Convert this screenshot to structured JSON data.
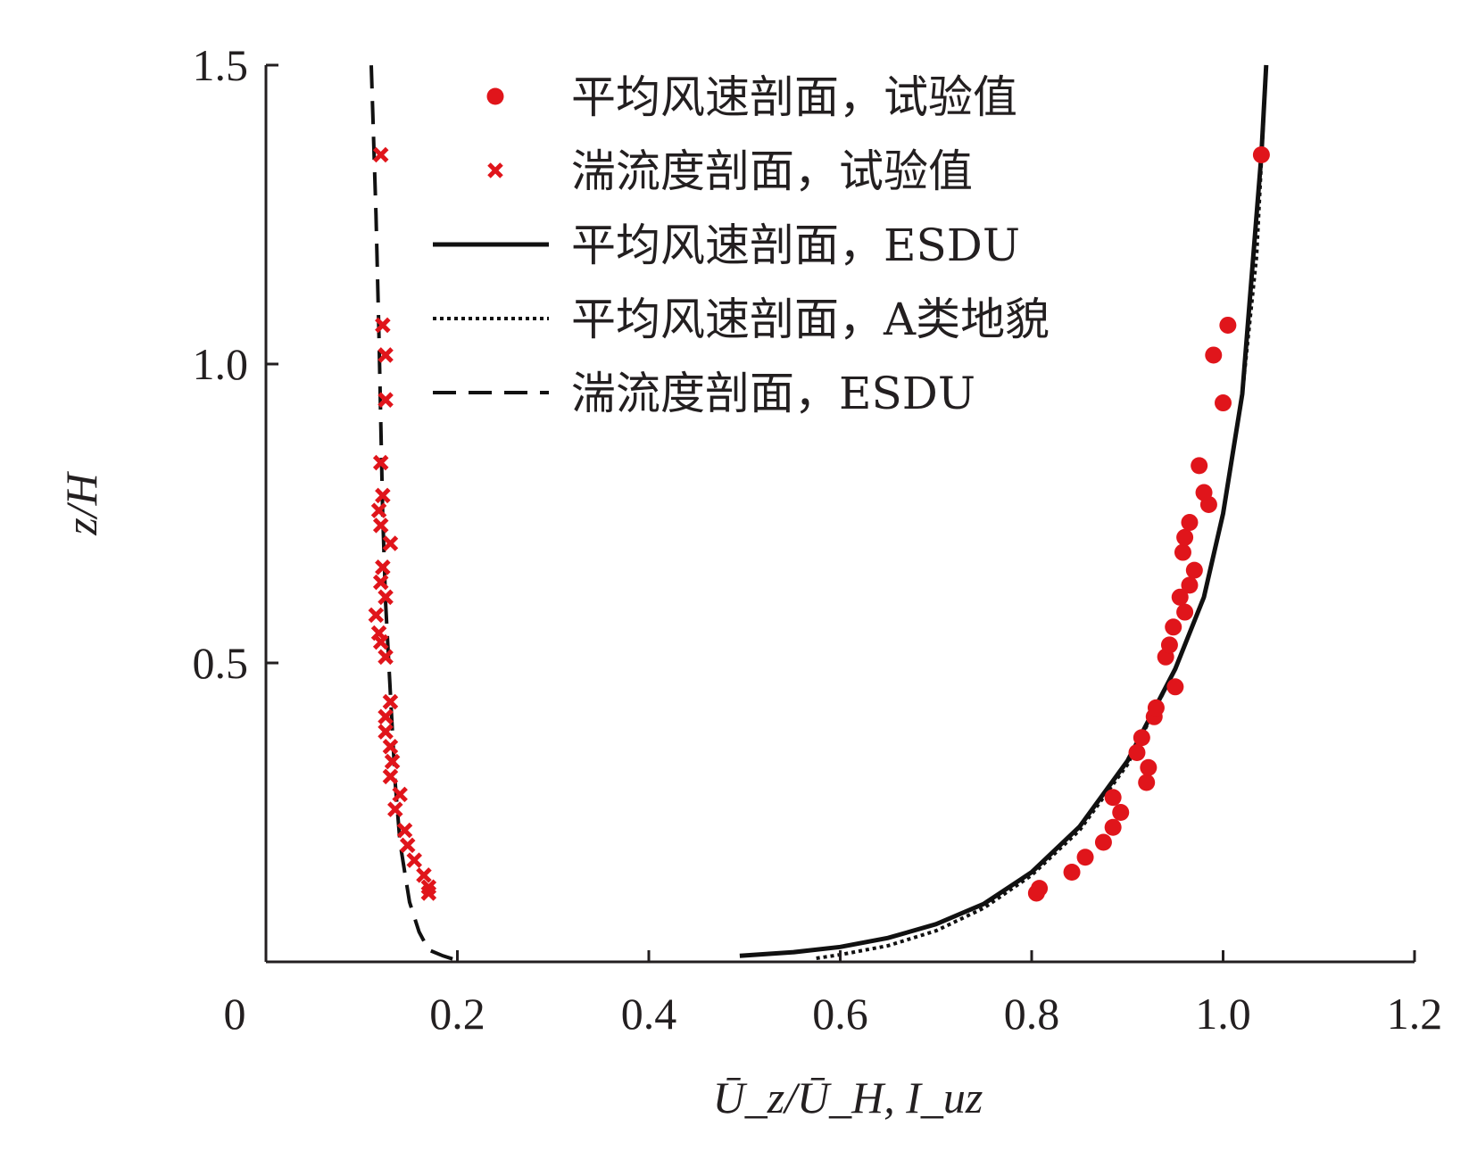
{
  "chart_data": {
    "type": "scatter",
    "xlabel": "Ū_z/Ū_H, I_uz",
    "ylabel": "z/H",
    "xlim": [
      0,
      1.2
    ],
    "ylim": [
      0,
      1.5
    ],
    "x_ticks": [
      "0",
      "0.2",
      "0.4",
      "0.6",
      "0.8",
      "1.0",
      "1.2"
    ],
    "y_ticks": [
      "0.5",
      "1.0",
      "1.5"
    ],
    "legend_position": "top-center",
    "colors": {
      "experiment": "#e0151b",
      "line": "#111111"
    },
    "series": [
      {
        "name": "平均风速剖面，试验值",
        "kind": "points",
        "marker": "circle",
        "points": [
          [
            0.805,
            0.115
          ],
          [
            0.808,
            0.123
          ],
          [
            0.842,
            0.15
          ],
          [
            0.856,
            0.175
          ],
          [
            0.875,
            0.2
          ],
          [
            0.885,
            0.225
          ],
          [
            0.893,
            0.25
          ],
          [
            0.885,
            0.275
          ],
          [
            0.92,
            0.3
          ],
          [
            0.922,
            0.325
          ],
          [
            0.91,
            0.35
          ],
          [
            0.915,
            0.375
          ],
          [
            0.928,
            0.41
          ],
          [
            0.93,
            0.425
          ],
          [
            0.95,
            0.46
          ],
          [
            0.94,
            0.51
          ],
          [
            0.944,
            0.53
          ],
          [
            0.948,
            0.56
          ],
          [
            0.96,
            0.585
          ],
          [
            0.955,
            0.61
          ],
          [
            0.965,
            0.63
          ],
          [
            0.97,
            0.655
          ],
          [
            0.958,
            0.685
          ],
          [
            0.96,
            0.71
          ],
          [
            0.965,
            0.735
          ],
          [
            0.985,
            0.765
          ],
          [
            0.98,
            0.785
          ],
          [
            0.975,
            0.83
          ],
          [
            1.0,
            0.935
          ],
          [
            0.99,
            1.015
          ],
          [
            1.005,
            1.065
          ],
          [
            1.04,
            1.35
          ]
        ]
      },
      {
        "name": "湍流度剖面，试验值",
        "kind": "points",
        "marker": "x",
        "points": [
          [
            0.17,
            0.115
          ],
          [
            0.17,
            0.125
          ],
          [
            0.165,
            0.145
          ],
          [
            0.155,
            0.17
          ],
          [
            0.148,
            0.195
          ],
          [
            0.145,
            0.22
          ],
          [
            0.135,
            0.255
          ],
          [
            0.14,
            0.28
          ],
          [
            0.13,
            0.31
          ],
          [
            0.132,
            0.335
          ],
          [
            0.13,
            0.36
          ],
          [
            0.125,
            0.385
          ],
          [
            0.125,
            0.41
          ],
          [
            0.13,
            0.435
          ],
          [
            0.125,
            0.51
          ],
          [
            0.12,
            0.535
          ],
          [
            0.118,
            0.55
          ],
          [
            0.115,
            0.58
          ],
          [
            0.125,
            0.61
          ],
          [
            0.12,
            0.635
          ],
          [
            0.122,
            0.66
          ],
          [
            0.13,
            0.7
          ],
          [
            0.12,
            0.73
          ],
          [
            0.118,
            0.755
          ],
          [
            0.122,
            0.78
          ],
          [
            0.12,
            0.835
          ],
          [
            0.125,
            0.94
          ],
          [
            0.125,
            1.015
          ],
          [
            0.122,
            1.065
          ],
          [
            0.12,
            1.35
          ]
        ]
      },
      {
        "name": "平均风速剖面，ESDU",
        "kind": "line",
        "dash": "solid",
        "points": [
          [
            0.495,
            0.01
          ],
          [
            0.55,
            0.016
          ],
          [
            0.6,
            0.025
          ],
          [
            0.65,
            0.04
          ],
          [
            0.7,
            0.063
          ],
          [
            0.75,
            0.097
          ],
          [
            0.8,
            0.15
          ],
          [
            0.85,
            0.226
          ],
          [
            0.9,
            0.336
          ],
          [
            0.95,
            0.49
          ],
          [
            0.98,
            0.61
          ],
          [
            1.0,
            0.75
          ],
          [
            1.02,
            0.95
          ],
          [
            1.03,
            1.15
          ],
          [
            1.04,
            1.35
          ],
          [
            1.045,
            1.5
          ]
        ]
      },
      {
        "name": "平均风速剖面，A类地貌",
        "kind": "line",
        "dash": "dotted",
        "points": [
          [
            0.575,
            0.006
          ],
          [
            0.6,
            0.012
          ],
          [
            0.65,
            0.027
          ],
          [
            0.7,
            0.052
          ],
          [
            0.75,
            0.09
          ],
          [
            0.8,
            0.145
          ],
          [
            0.85,
            0.22
          ],
          [
            0.9,
            0.33
          ],
          [
            0.95,
            0.49
          ],
          [
            0.98,
            0.61
          ],
          [
            1.0,
            0.75
          ],
          [
            1.02,
            0.95
          ],
          [
            1.035,
            1.18
          ],
          [
            1.045,
            1.5
          ]
        ]
      },
      {
        "name": "湍流度剖面，ESDU",
        "kind": "line",
        "dash": "dashed",
        "points": [
          [
            0.195,
            0.005
          ],
          [
            0.185,
            0.01
          ],
          [
            0.17,
            0.02
          ],
          [
            0.16,
            0.05
          ],
          [
            0.15,
            0.1
          ],
          [
            0.145,
            0.15
          ],
          [
            0.14,
            0.2
          ],
          [
            0.135,
            0.3
          ],
          [
            0.13,
            0.45
          ],
          [
            0.125,
            0.6
          ],
          [
            0.122,
            0.75
          ],
          [
            0.12,
            0.9
          ],
          [
            0.118,
            1.05
          ],
          [
            0.115,
            1.25
          ],
          [
            0.11,
            1.5
          ]
        ]
      }
    ]
  }
}
